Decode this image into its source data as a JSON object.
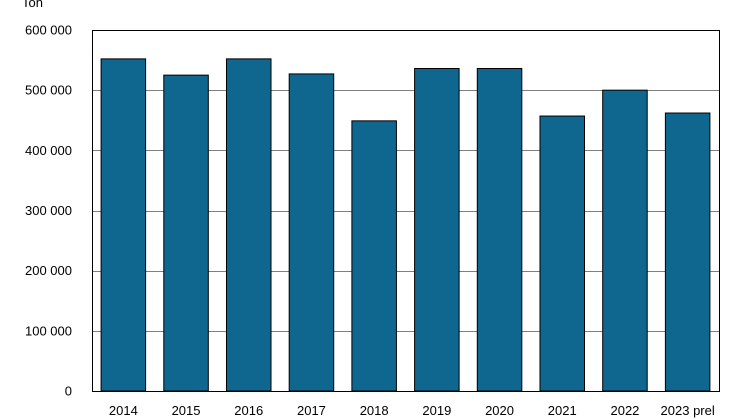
{
  "chart_data": {
    "type": "bar",
    "unit_label": "Ton",
    "categories": [
      "2014",
      "2015",
      "2016",
      "2017",
      "2018",
      "2019",
      "2020",
      "2021",
      "2022",
      "2023 prel"
    ],
    "values": [
      552000,
      525000,
      552000,
      527000,
      449000,
      536000,
      536000,
      457000,
      500000,
      462000
    ],
    "y_ticks": [
      0,
      100000,
      200000,
      300000,
      400000,
      500000,
      600000
    ],
    "y_tick_labels": [
      "0",
      "100 000",
      "200 000",
      "300 000",
      "400 000",
      "500 000",
      "600 000"
    ],
    "ylim": [
      0,
      600000
    ],
    "grid": true,
    "legend": "none",
    "colors": {
      "bar": "#0f6790",
      "bar_stroke": "#000000",
      "grid": "#7f7f7f",
      "frame": "#000000"
    }
  }
}
